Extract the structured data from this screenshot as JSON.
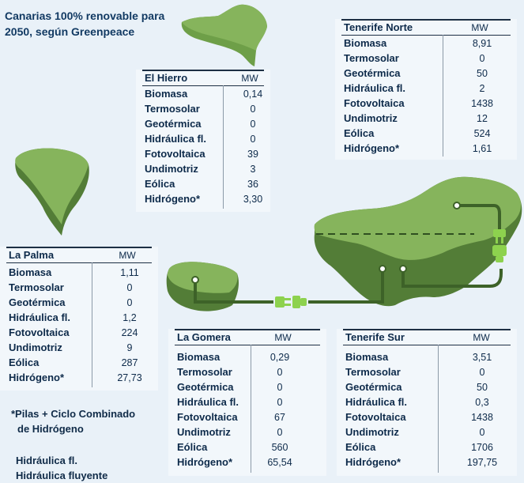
{
  "title": "Canarias 100% renovable para 2050, según Greenpeace",
  "colors": {
    "island": "#78a84f",
    "island_dark": "#4f7a36",
    "cable": "#3d6228",
    "plug": "#8dd24e",
    "panel_bg": "#f2f7fb"
  },
  "unit_label": "MW",
  "islands": {
    "el_hierro": {
      "name": "El Hierro",
      "rows": [
        {
          "label": "Biomasa",
          "value": "0,14"
        },
        {
          "label": "Termosolar",
          "value": "0"
        },
        {
          "label": "Geotérmica",
          "value": "0"
        },
        {
          "label": "Hidráulica fl.",
          "value": "0"
        },
        {
          "label": "Fotovoltaica",
          "value": "39"
        },
        {
          "label": "Undimotriz",
          "value": "3"
        },
        {
          "label": "Eólica",
          "value": "36"
        },
        {
          "label": "Hidrógeno*",
          "value": "3,30"
        }
      ]
    },
    "tenerife_norte": {
      "name": "Tenerife Norte",
      "rows": [
        {
          "label": "Biomasa",
          "value": "8,91"
        },
        {
          "label": "Termosolar",
          "value": "0"
        },
        {
          "label": "Geotérmica",
          "value": "50"
        },
        {
          "label": "Hidráulica fl.",
          "value": "2"
        },
        {
          "label": "Fotovoltaica",
          "value": "1438"
        },
        {
          "label": "Undimotriz",
          "value": "12"
        },
        {
          "label": "Eólica",
          "value": "524"
        },
        {
          "label": "Hidrógeno*",
          "value": "1,61"
        }
      ]
    },
    "la_palma": {
      "name": "La Palma",
      "rows": [
        {
          "label": "Biomasa",
          "value": "1,11"
        },
        {
          "label": "Termosolar",
          "value": "0"
        },
        {
          "label": "Geotérmica",
          "value": "0"
        },
        {
          "label": "Hidráulica fl.",
          "value": "1,2"
        },
        {
          "label": "Fotovoltaica",
          "value": "224"
        },
        {
          "label": "Undimotriz",
          "value": "9"
        },
        {
          "label": "Eólica",
          "value": "287"
        },
        {
          "label": "Hidrógeno*",
          "value": "27,73"
        }
      ]
    },
    "la_gomera": {
      "name": "La Gomera",
      "rows": [
        {
          "label": "Biomasa",
          "value": "0,29"
        },
        {
          "label": "Termosolar",
          "value": "0"
        },
        {
          "label": "Geotérmica",
          "value": "0"
        },
        {
          "label": "Hidráulica fl.",
          "value": "0"
        },
        {
          "label": "Fotovoltaica",
          "value": "67"
        },
        {
          "label": "Undimotriz",
          "value": "0"
        },
        {
          "label": "Eólica",
          "value": "560"
        },
        {
          "label": "Hidrógeno*",
          "value": "65,54"
        }
      ]
    },
    "tenerife_sur": {
      "name": "Tenerife Sur",
      "rows": [
        {
          "label": "Biomasa",
          "value": "3,51"
        },
        {
          "label": "Termosolar",
          "value": "0"
        },
        {
          "label": "Geotérmica",
          "value": "50"
        },
        {
          "label": "Hidráulica fl.",
          "value": "0,3"
        },
        {
          "label": "Fotovoltaica",
          "value": "1438"
        },
        {
          "label": "Undimotriz",
          "value": "0"
        },
        {
          "label": "Eólica",
          "value": "1706"
        },
        {
          "label": "Hidrógeno*",
          "value": "197,75"
        }
      ]
    }
  },
  "notes": {
    "hydrogen": [
      "*Pilas + Ciclo Combinado",
      "de Hidrógeno"
    ],
    "hydraulic": [
      "Hidráulica fl.",
      "Hidráulica fluyente"
    ]
  }
}
